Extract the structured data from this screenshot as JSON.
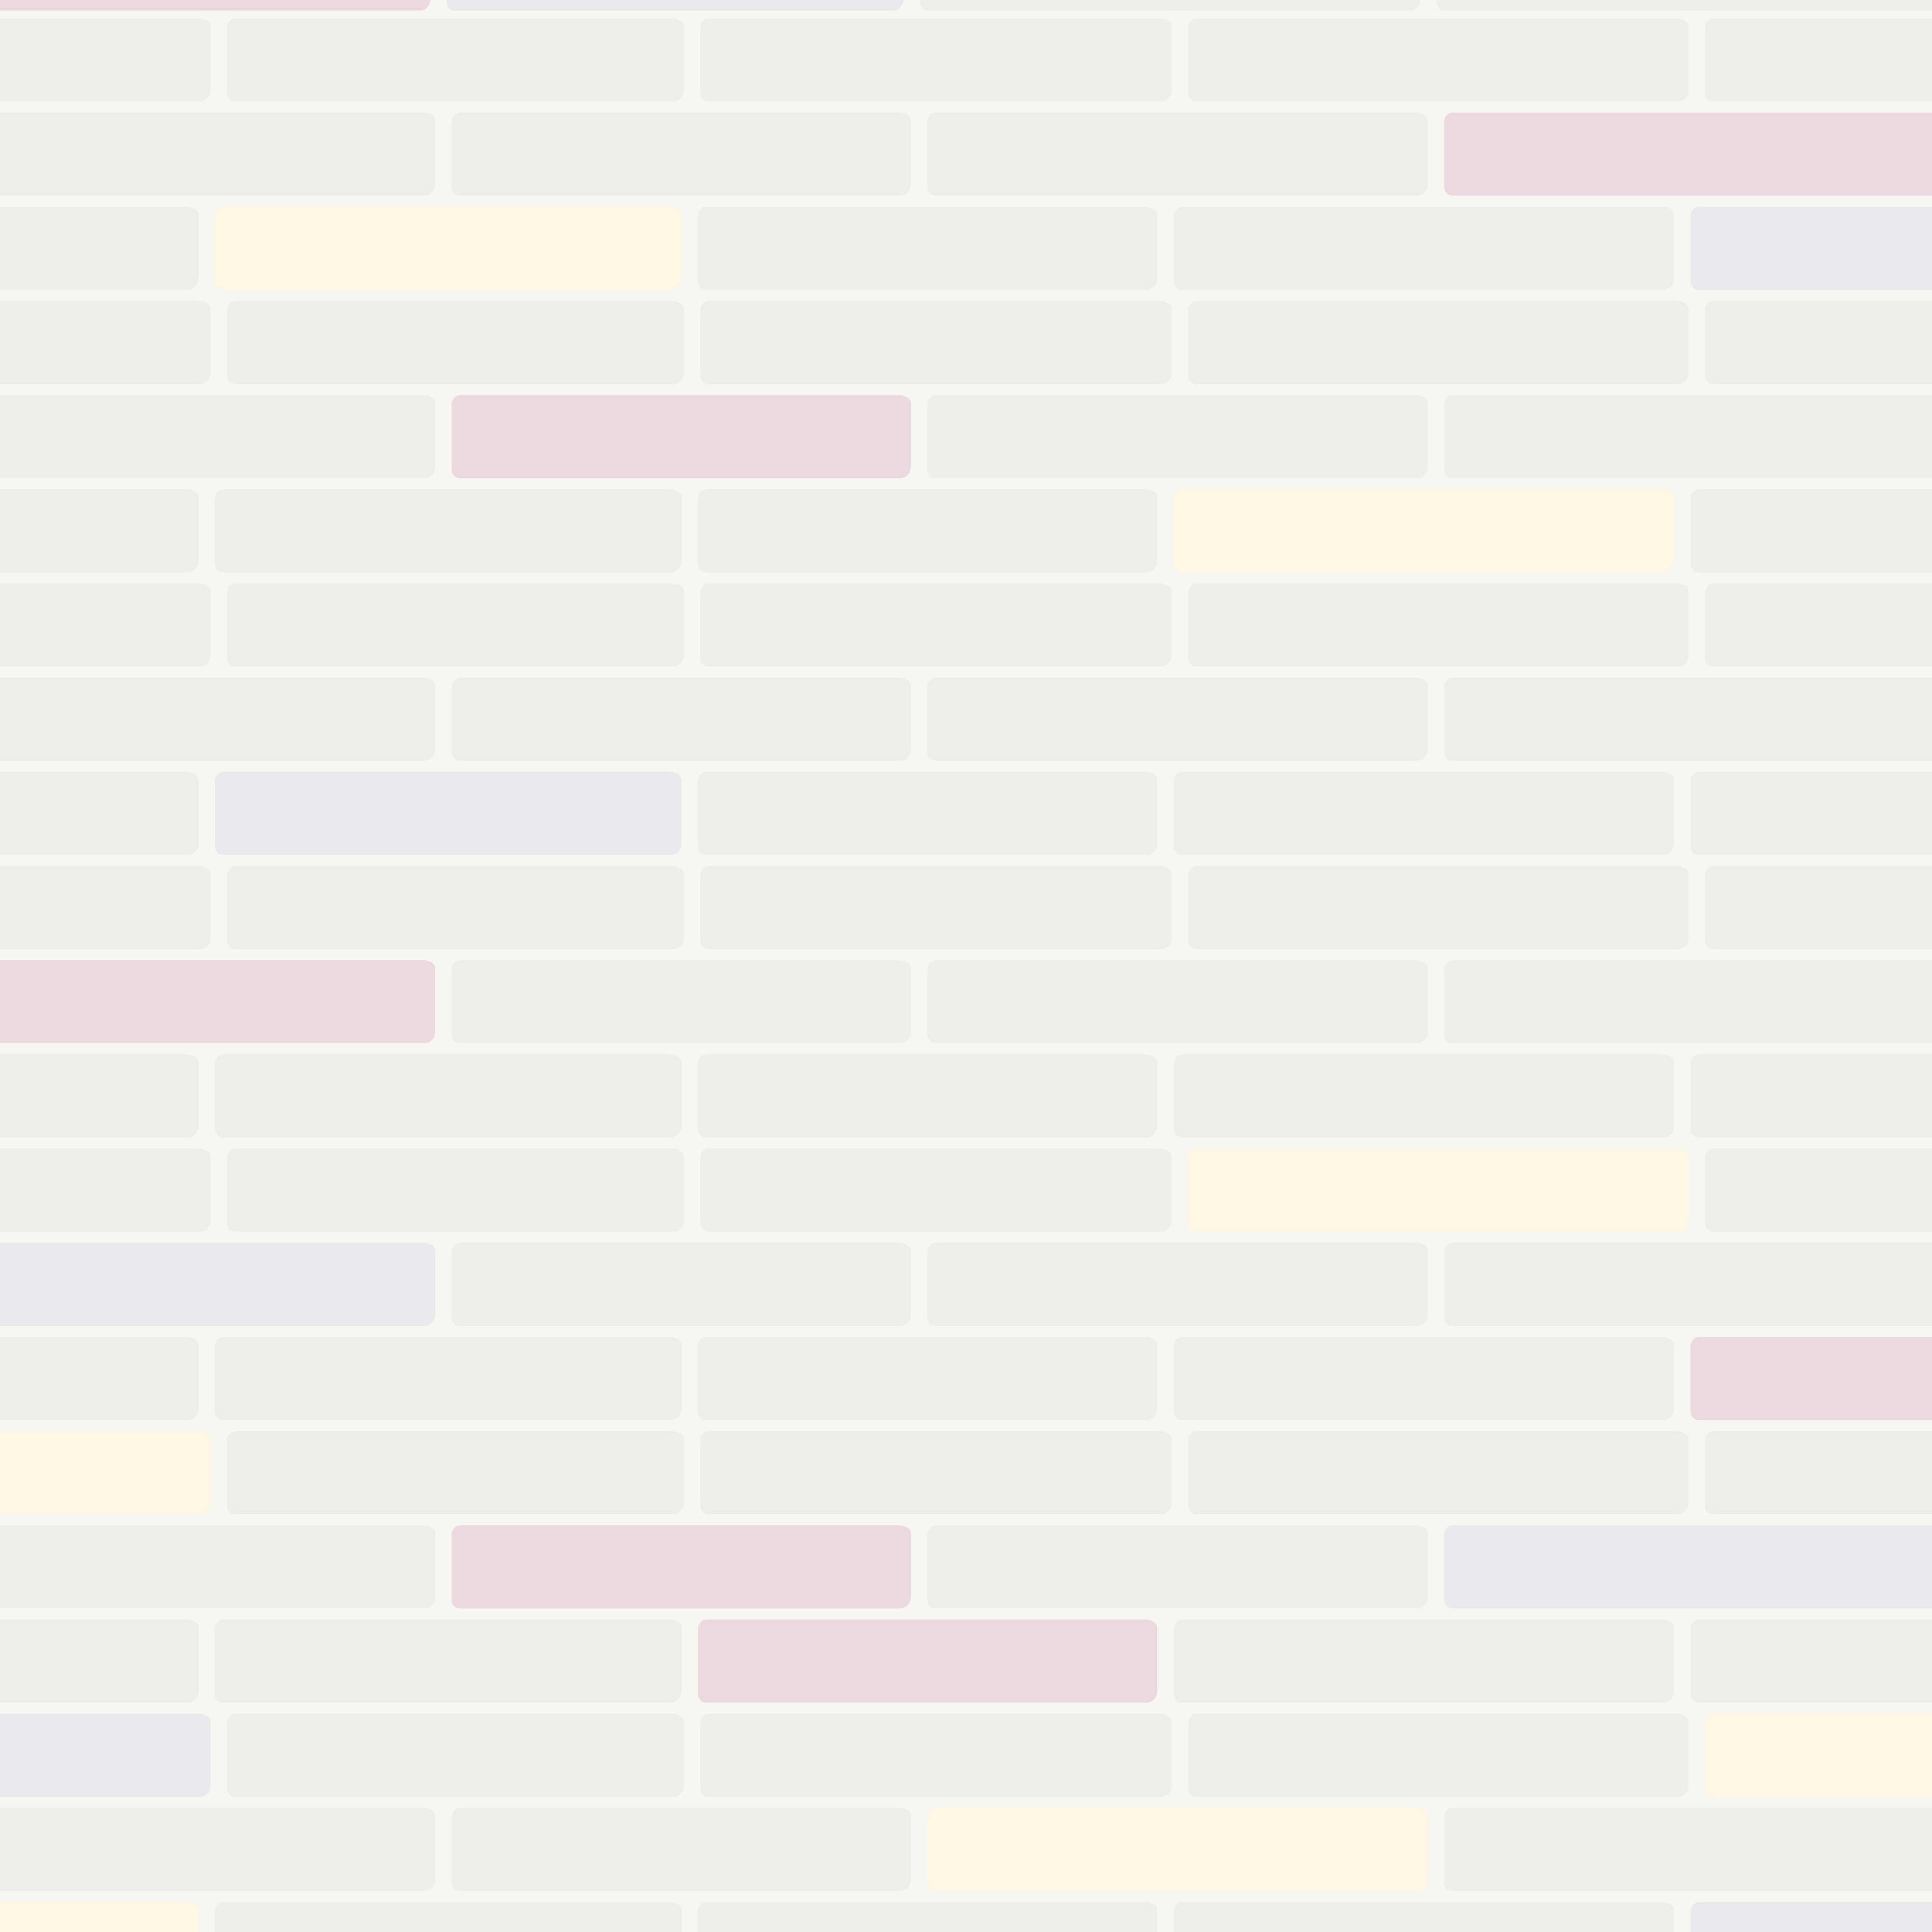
{
  "palette": {
    "mortar": "#f7f6f1",
    "brick": "#eeede8",
    "pink": "#ecd8e0",
    "yellow": "#fff6e6",
    "lavender": "#e8e9ec"
  },
  "pattern": {
    "brick_count": 130,
    "row_count": 21,
    "accent_bricks": [
      {
        "row": 2,
        "col": 3,
        "color": "pink"
      },
      {
        "row": 3,
        "col": 1,
        "color": "yellow"
      },
      {
        "row": 3,
        "col": 4,
        "color": "lavender"
      },
      {
        "row": 5,
        "col": 1,
        "color": "pink"
      },
      {
        "row": 6,
        "col": 3,
        "color": "yellow"
      },
      {
        "row": 9,
        "col": 1,
        "color": "lavender"
      },
      {
        "row": 11,
        "col": 0,
        "color": "pink"
      },
      {
        "row": 11,
        "col": 4,
        "color": "lavender"
      },
      {
        "row": 13,
        "col": 3,
        "color": "yellow"
      },
      {
        "row": 14,
        "col": 0,
        "color": "lavender"
      },
      {
        "row": 15,
        "col": 4,
        "color": "pink"
      },
      {
        "row": 16,
        "col": 0,
        "color": "yellow"
      },
      {
        "row": 17,
        "col": 1,
        "color": "pink"
      },
      {
        "row": 17,
        "col": 3,
        "color": "lavender"
      },
      {
        "row": 18,
        "col": 2,
        "color": "pink"
      },
      {
        "row": 19,
        "col": 0,
        "color": "lavender"
      },
      {
        "row": 19,
        "col": 4,
        "color": "yellow"
      },
      {
        "row": 20,
        "col": 2,
        "color": "yellow"
      },
      {
        "row": 21,
        "col": 0,
        "color": "yellow"
      },
      {
        "row": 21,
        "col": 4,
        "color": "lavender"
      }
    ]
  }
}
